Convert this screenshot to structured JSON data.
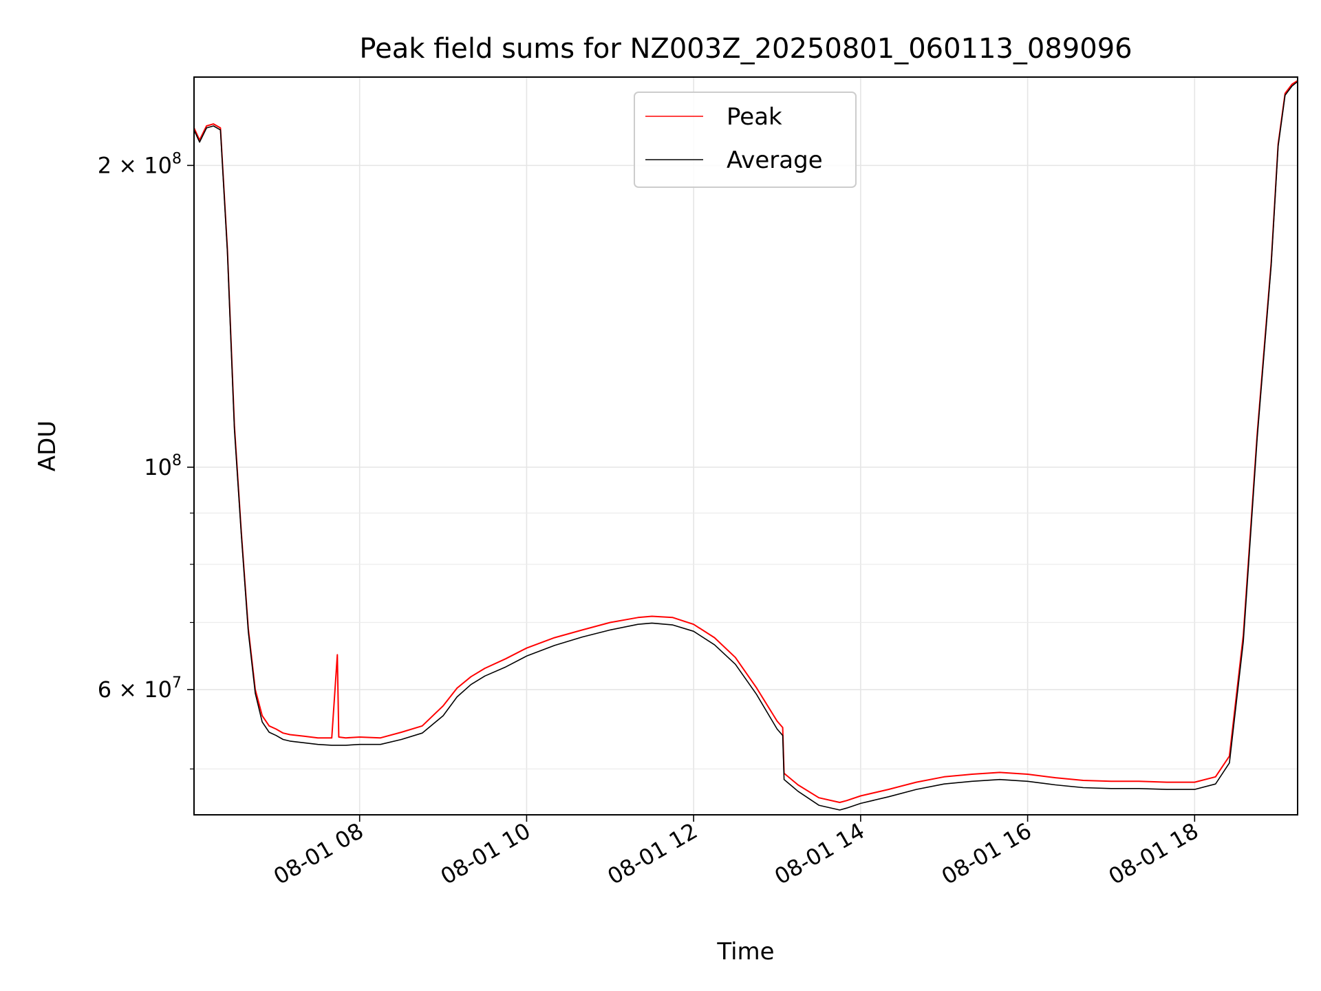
{
  "chart_data": {
    "type": "line",
    "title": "Peak field sums for NZ003Z_20250801_060113_089096",
    "xlabel": "Time",
    "ylabel": "ADU",
    "yscale": "log",
    "xlim": [
      "2025-08-01 06:01",
      "2025-08-01 19:14"
    ],
    "ylim": [
      45000000,
      245000000
    ],
    "grid": true,
    "legend_position": "upper center",
    "x_ticks": [
      {
        "value": "2025-08-01 08:00",
        "label": "08-01 08"
      },
      {
        "value": "2025-08-01 10:00",
        "label": "08-01 10"
      },
      {
        "value": "2025-08-01 12:00",
        "label": "08-01 12"
      },
      {
        "value": "2025-08-01 14:00",
        "label": "08-01 14"
      },
      {
        "value": "2025-08-01 16:00",
        "label": "08-01 16"
      },
      {
        "value": "2025-08-01 18:00",
        "label": "08-01 18"
      }
    ],
    "y_ticks": [
      {
        "value": 60000000,
        "label": "6 × 10",
        "exp": "7"
      },
      {
        "value": 100000000,
        "label": "10",
        "exp": "8"
      },
      {
        "value": 200000000,
        "label": "2 × 10",
        "exp": "8"
      }
    ],
    "y_minor_ticks": [
      50000000,
      70000000,
      80000000,
      90000000
    ],
    "series": [
      {
        "name": "Peak",
        "color": "#ff0000",
        "x": [
          "06:01",
          "06:05",
          "06:10",
          "06:15",
          "06:20",
          "06:25",
          "06:30",
          "06:35",
          "06:40",
          "06:45",
          "06:50",
          "06:55",
          "07:00",
          "07:05",
          "07:10",
          "07:20",
          "07:30",
          "07:40",
          "07:44",
          "07:45",
          "07:50",
          "08:00",
          "08:15",
          "08:30",
          "08:45",
          "09:00",
          "09:10",
          "09:20",
          "09:30",
          "09:45",
          "10:00",
          "10:20",
          "10:40",
          "11:00",
          "11:20",
          "11:30",
          "11:45",
          "12:00",
          "12:15",
          "12:30",
          "12:45",
          "13:00",
          "13:04",
          "13:05",
          "13:15",
          "13:30",
          "13:45",
          "13:50",
          "14:00",
          "14:20",
          "14:40",
          "15:00",
          "15:20",
          "15:40",
          "16:00",
          "16:20",
          "16:40",
          "17:00",
          "17:20",
          "17:40",
          "18:00",
          "18:15",
          "18:25",
          "18:35",
          "18:45",
          "18:55",
          "19:00",
          "19:05",
          "19:10",
          "19:14"
        ],
        "y": [
          218000000,
          212000000,
          219000000,
          220000000,
          218000000,
          165000000,
          110000000,
          86000000,
          69000000,
          60000000,
          56500000,
          55200000,
          54800000,
          54300000,
          54100000,
          53900000,
          53700000,
          53700000,
          65000000,
          53800000,
          53700000,
          53800000,
          53700000,
          54400000,
          55200000,
          57800000,
          60200000,
          61800000,
          63000000,
          64400000,
          66000000,
          67600000,
          68800000,
          70000000,
          70800000,
          71000000,
          70800000,
          69700000,
          67600000,
          64600000,
          60300000,
          55800000,
          55000000,
          49500000,
          48200000,
          46800000,
          46300000,
          46500000,
          47000000,
          47700000,
          48500000,
          49100000,
          49400000,
          49600000,
          49400000,
          49000000,
          48700000,
          48600000,
          48600000,
          48500000,
          48500000,
          49100000,
          51500000,
          68000000,
          108000000,
          160000000,
          210000000,
          236000000,
          241000000,
          243000000
        ]
      },
      {
        "name": "Average",
        "color": "#000000",
        "x": [
          "06:01",
          "06:05",
          "06:10",
          "06:15",
          "06:20",
          "06:25",
          "06:30",
          "06:35",
          "06:40",
          "06:45",
          "06:50",
          "06:55",
          "07:00",
          "07:05",
          "07:10",
          "07:20",
          "07:30",
          "07:40",
          "07:45",
          "07:50",
          "08:00",
          "08:15",
          "08:30",
          "08:45",
          "09:00",
          "09:10",
          "09:20",
          "09:30",
          "09:45",
          "10:00",
          "10:20",
          "10:40",
          "11:00",
          "11:20",
          "11:30",
          "11:45",
          "12:00",
          "12:15",
          "12:30",
          "12:45",
          "13:00",
          "13:04",
          "13:05",
          "13:15",
          "13:30",
          "13:45",
          "13:50",
          "14:00",
          "14:20",
          "14:40",
          "15:00",
          "15:20",
          "15:40",
          "16:00",
          "16:20",
          "16:40",
          "17:00",
          "17:20",
          "17:40",
          "18:00",
          "18:15",
          "18:25",
          "18:35",
          "18:45",
          "18:55",
          "19:00",
          "19:05",
          "19:10",
          "19:14"
        ],
        "y": [
          217000000,
          211000000,
          218000000,
          219000000,
          217000000,
          164000000,
          109000000,
          85500000,
          68500000,
          59500000,
          55700000,
          54400000,
          54000000,
          53500000,
          53300000,
          53100000,
          52900000,
          52800000,
          52800000,
          52800000,
          52900000,
          52900000,
          53500000,
          54300000,
          56500000,
          59000000,
          60700000,
          61900000,
          63200000,
          64800000,
          66400000,
          67700000,
          68800000,
          69700000,
          69900000,
          69600000,
          68600000,
          66500000,
          63600000,
          59400000,
          54800000,
          54000000,
          48800000,
          47500000,
          46000000,
          45500000,
          45700000,
          46200000,
          46900000,
          47700000,
          48300000,
          48600000,
          48800000,
          48600000,
          48200000,
          47900000,
          47800000,
          47800000,
          47700000,
          47700000,
          48300000,
          50700000,
          67000000,
          107000000,
          159000000,
          209000000,
          235000000,
          240000000,
          242500000
        ]
      }
    ]
  }
}
